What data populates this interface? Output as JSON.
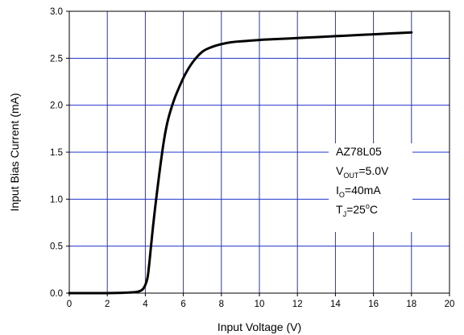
{
  "chart_data": {
    "type": "line",
    "xlabel": "Input Voltage (V)",
    "ylabel": "Input Bias Current (mA)",
    "xlim": [
      0,
      20
    ],
    "ylim": [
      0,
      3.0
    ],
    "x_ticks": [
      0,
      2,
      4,
      6,
      8,
      10,
      12,
      14,
      16,
      18,
      20
    ],
    "y_ticks": [
      0.0,
      0.5,
      1.0,
      1.5,
      2.0,
      2.5,
      3.0
    ],
    "x_tick_labels": [
      "0",
      "2",
      "4",
      "6",
      "8",
      "10",
      "12",
      "14",
      "16",
      "18",
      "20"
    ],
    "y_tick_labels": [
      "0.0",
      "0.5",
      "1.0",
      "1.5",
      "2.0",
      "2.5",
      "3.0"
    ],
    "grid": true,
    "grid_color": "#2233cc",
    "line_color": "#000000",
    "series": [
      {
        "x": [
          0,
          2,
          3,
          3.6,
          3.9,
          4.1,
          4.2,
          4.3,
          4.4,
          4.5,
          4.6,
          4.8,
          5.0,
          5.2,
          5.5,
          5.8,
          6.1,
          6.5,
          7.0,
          7.5,
          8.0,
          8.5,
          9.0,
          10.0,
          11.0,
          12.0,
          13.0,
          14.0,
          15.0,
          16.0,
          17.0,
          18.0
        ],
        "y": [
          0.0,
          0.0,
          0.005,
          0.015,
          0.05,
          0.15,
          0.3,
          0.5,
          0.7,
          0.88,
          1.05,
          1.37,
          1.65,
          1.85,
          2.05,
          2.2,
          2.33,
          2.46,
          2.57,
          2.62,
          2.65,
          2.67,
          2.68,
          2.695,
          2.705,
          2.715,
          2.725,
          2.735,
          2.745,
          2.755,
          2.765,
          2.775
        ]
      }
    ],
    "annotation": {
      "line1": "AZ78L05",
      "line2": {
        "main": "V",
        "sub": "OUT",
        "rest": "=5.0V"
      },
      "line3": {
        "main": "I",
        "sub": "O",
        "rest": "=40mA"
      },
      "line4": {
        "main": "T",
        "sub": "J",
        "rest": "=25",
        "sup": "o",
        "tail": "C"
      }
    }
  }
}
